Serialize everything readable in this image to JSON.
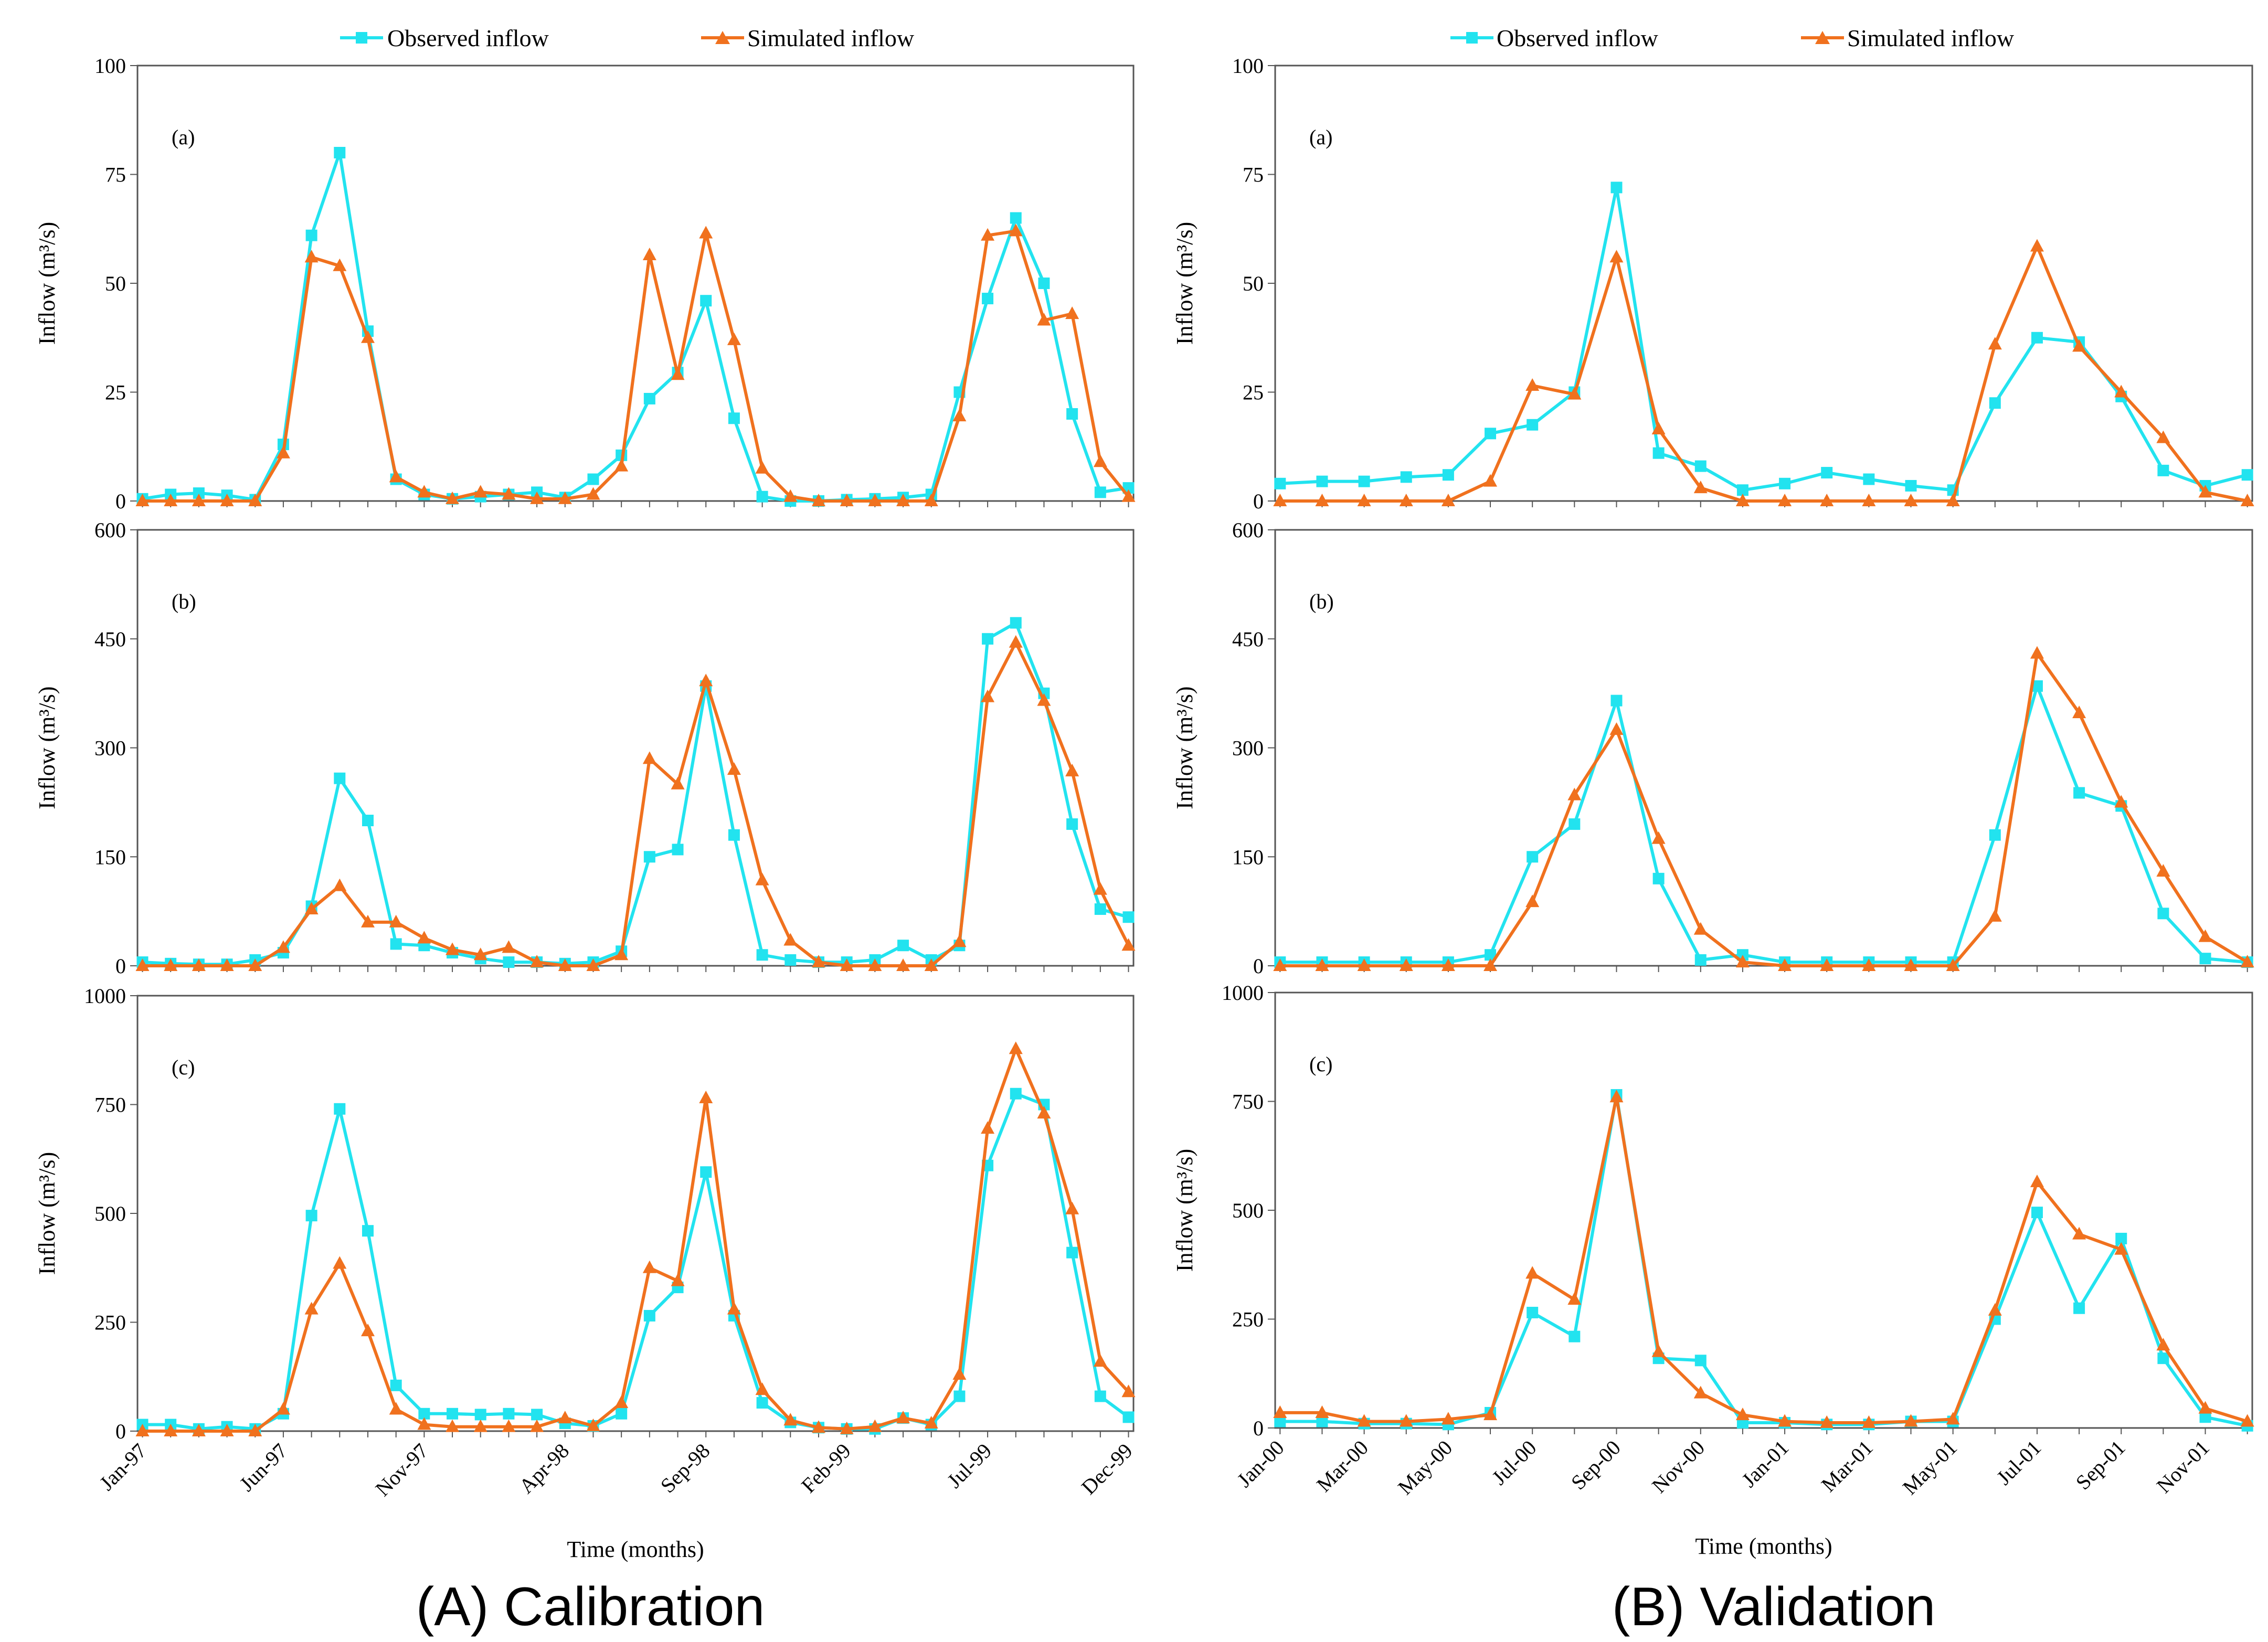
{
  "legend": {
    "observed_label": "Observed inflow",
    "simulated_label": "Simulated inflow",
    "observed_color": "#22e3ef",
    "simulated_color": "#f0711e"
  },
  "captions": {
    "calibration": "(A) Calibration",
    "validation": "(B) Validation"
  },
  "chart_data": [
    {
      "type": "line",
      "group": "calibration",
      "panel_label": "(a)",
      "ylabel": "Inflow (m³/s)",
      "xlabel": "",
      "ylim": [
        0,
        100
      ],
      "yticks": [
        0,
        25,
        50,
        75,
        100
      ],
      "x_tick_labels": [],
      "series": [
        {
          "name": "Observed inflow",
          "values": [
            0.5,
            1.5,
            1.8,
            1.3,
            0.3,
            13,
            61,
            80,
            39,
            5,
            1.5,
            0.5,
            1,
            1.5,
            2,
            0.8,
            5,
            10.5,
            23.5,
            29.5,
            46,
            19,
            1,
            0,
            0,
            0.3,
            0.5,
            0.8,
            1.5,
            25,
            46.5,
            65,
            50,
            20,
            2,
            3
          ]
        },
        {
          "name": "Simulated inflow",
          "values": [
            0,
            0,
            0,
            0,
            0,
            11,
            56,
            54,
            37.5,
            5.5,
            2,
            0.5,
            2,
            1.5,
            0.5,
            0.5,
            1.5,
            8,
            56.5,
            29,
            61.5,
            37,
            7.5,
            1,
            0,
            0,
            0,
            0,
            0,
            19.5,
            61,
            62,
            41.5,
            43,
            9,
            1
          ]
        }
      ]
    },
    {
      "type": "line",
      "group": "calibration",
      "panel_label": "(b)",
      "ylabel": "Inflow (m³/s)",
      "xlabel": "",
      "ylim": [
        0,
        600
      ],
      "yticks": [
        0,
        150,
        300,
        450,
        600
      ],
      "x_tick_labels": [],
      "series": [
        {
          "name": "Observed inflow",
          "values": [
            5,
            3,
            2,
            2,
            8,
            18,
            82,
            258,
            200,
            30,
            28,
            18,
            10,
            5,
            5,
            3,
            5,
            20,
            150,
            160,
            385,
            180,
            15,
            8,
            5,
            5,
            8,
            28,
            8,
            28,
            450,
            472,
            375,
            195,
            78,
            67
          ]
        },
        {
          "name": "Simulated inflow",
          "values": [
            0,
            0,
            0,
            0,
            0,
            25,
            78,
            110,
            60,
            60,
            38,
            22,
            15,
            25,
            5,
            0,
            0,
            15,
            285,
            250,
            392,
            270,
            118,
            35,
            5,
            0,
            0,
            0,
            0,
            33,
            370,
            445,
            365,
            268,
            105,
            28
          ]
        }
      ]
    },
    {
      "type": "line",
      "group": "calibration",
      "panel_label": "(c)",
      "ylabel": "Inflow (m³/s)",
      "xlabel": "Time (months)",
      "ylim": [
        0,
        1000
      ],
      "yticks": [
        0,
        250,
        500,
        750,
        1000
      ],
      "x_tick_labels": [
        "Jan-97",
        "Jun-97",
        "Nov-97",
        "Apr-98",
        "Sep-98",
        "Feb-99",
        "Jul-99",
        "Dec-99"
      ],
      "series": [
        {
          "name": "Observed inflow",
          "values": [
            15,
            15,
            5,
            10,
            5,
            40,
            495,
            740,
            460,
            105,
            40,
            40,
            38,
            40,
            38,
            18,
            12,
            40,
            265,
            330,
            595,
            265,
            65,
            20,
            8,
            5,
            5,
            30,
            15,
            80,
            610,
            775,
            750,
            410,
            80,
            32
          ]
        },
        {
          "name": "Simulated inflow",
          "values": [
            0,
            0,
            0,
            0,
            0,
            50,
            280,
            385,
            230,
            50,
            15,
            10,
            10,
            10,
            10,
            30,
            12,
            65,
            375,
            345,
            765,
            280,
            95,
            25,
            8,
            5,
            10,
            30,
            18,
            130,
            695,
            878,
            730,
            510,
            160,
            90
          ]
        }
      ]
    },
    {
      "type": "line",
      "group": "validation",
      "panel_label": "(a)",
      "ylabel": "Inflow (m³/s)",
      "xlabel": "",
      "ylim": [
        0,
        100
      ],
      "yticks": [
        0,
        25,
        50,
        75,
        100
      ],
      "x_tick_labels": [],
      "series": [
        {
          "name": "Observed inflow",
          "values": [
            4,
            4.5,
            4.5,
            5.5,
            6,
            15.5,
            17.5,
            25,
            72,
            11,
            8,
            2.5,
            4,
            6.5,
            5,
            3.5,
            2.5,
            22.5,
            37.5,
            36.5,
            24,
            7,
            3.5,
            6
          ]
        },
        {
          "name": "Simulated inflow",
          "values": [
            0,
            0,
            0,
            0,
            0,
            4.5,
            26.5,
            24.5,
            56,
            16.5,
            3,
            0,
            0,
            0,
            0,
            0,
            0,
            36,
            58.5,
            35.5,
            25,
            14.5,
            2,
            0
          ]
        }
      ]
    },
    {
      "type": "line",
      "group": "validation",
      "panel_label": "(b)",
      "ylabel": "Inflow (m³/s)",
      "xlabel": "",
      "ylim": [
        0,
        600
      ],
      "yticks": [
        0,
        150,
        300,
        450,
        600
      ],
      "x_tick_labels": [],
      "series": [
        {
          "name": "Observed inflow",
          "values": [
            5,
            5,
            5,
            5,
            5,
            15,
            150,
            195,
            365,
            120,
            8,
            15,
            5,
            5,
            5,
            5,
            5,
            180,
            385,
            238,
            220,
            72,
            10,
            5
          ]
        },
        {
          "name": "Simulated inflow",
          "values": [
            0,
            0,
            0,
            0,
            0,
            0,
            88,
            235,
            325,
            175,
            50,
            5,
            0,
            0,
            0,
            0,
            0,
            68,
            430,
            348,
            225,
            130,
            40,
            5
          ]
        }
      ]
    },
    {
      "type": "line",
      "group": "validation",
      "panel_label": "(c)",
      "ylabel": "Inflow (m³/s)",
      "xlabel": "Time (months)",
      "ylim": [
        0,
        1000
      ],
      "yticks": [
        0,
        250,
        500,
        750,
        1000
      ],
      "x_tick_labels": [
        "Jan-00",
        "Mar-00",
        "May-00",
        "Jul-00",
        "Sep-00",
        "Nov-00",
        "Jan-01",
        "Mar-01",
        "May-01",
        "Jul-01",
        "Sep-01",
        "Nov-01"
      ],
      "series": [
        {
          "name": "Observed inflow",
          "values": [
            15,
            15,
            10,
            10,
            8,
            35,
            265,
            210,
            765,
            160,
            155,
            12,
            12,
            8,
            8,
            15,
            15,
            250,
            495,
            275,
            435,
            160,
            25,
            5
          ]
        },
        {
          "name": "Simulated inflow",
          "values": [
            35,
            35,
            15,
            15,
            20,
            30,
            355,
            295,
            760,
            175,
            80,
            30,
            15,
            12,
            12,
            15,
            20,
            270,
            565,
            445,
            410,
            190,
            45,
            15
          ]
        }
      ]
    }
  ]
}
